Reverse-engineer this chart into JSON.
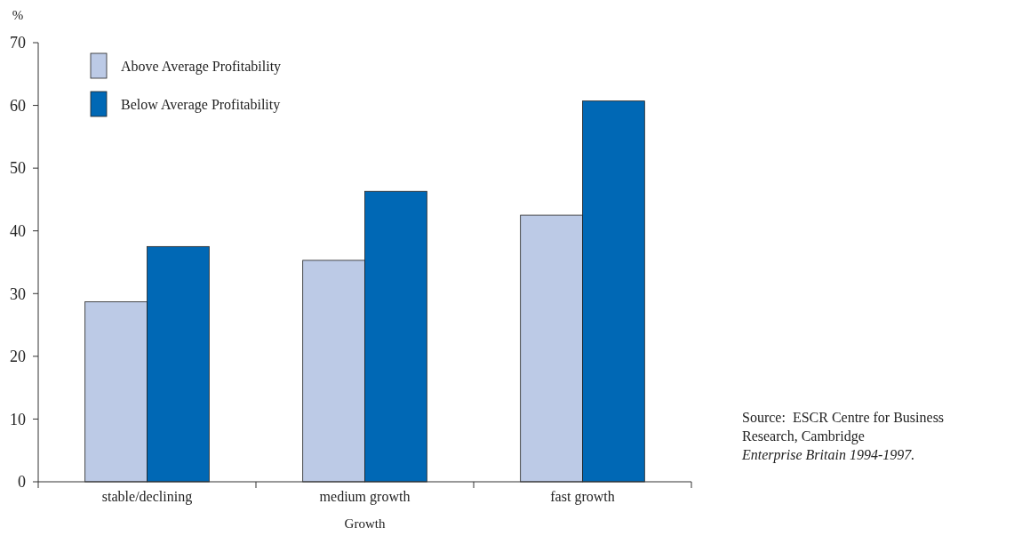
{
  "chart_data": {
    "type": "bar",
    "ylabel": "%",
    "xlabel": "Growth",
    "categories": [
      "stable/declining",
      "medium growth",
      "fast growth"
    ],
    "series": [
      {
        "name": "Above Average Profitability",
        "color": "#bccae6",
        "values": [
          28.7,
          35.3,
          42.5
        ]
      },
      {
        "name": "Below Average Profitability",
        "color": "#0068b5",
        "values": [
          37.5,
          46.3,
          60.7
        ]
      }
    ],
    "ylim": [
      0,
      70
    ],
    "yticks": [
      0,
      10,
      20,
      30,
      40,
      50,
      60,
      70
    ],
    "grid": false,
    "legend": "top left",
    "annotations": [
      "Source:  ESCR Centre for Business Research, Cambridge",
      "Enterprise Britain 1994-1997."
    ]
  }
}
